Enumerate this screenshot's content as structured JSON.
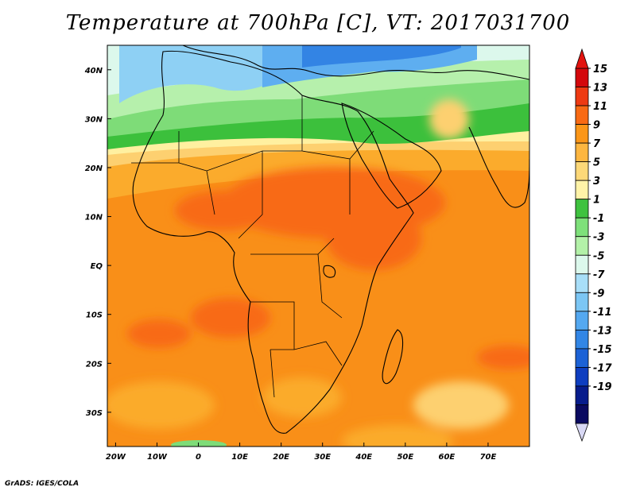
{
  "title": "Temperature at 700hPa [C], VT: 2017031700",
  "credit": "GrADS: IGES/COLA",
  "map": {
    "lon_range": [
      -22,
      80
    ],
    "lat_range": [
      -37,
      45
    ],
    "lon_ticks": [
      {
        "value": -20,
        "label": "20W"
      },
      {
        "value": -10,
        "label": "10W"
      },
      {
        "value": 0,
        "label": "0"
      },
      {
        "value": 10,
        "label": "10E"
      },
      {
        "value": 20,
        "label": "20E"
      },
      {
        "value": 30,
        "label": "30E"
      },
      {
        "value": 40,
        "label": "40E"
      },
      {
        "value": 50,
        "label": "50E"
      },
      {
        "value": 60,
        "label": "60E"
      },
      {
        "value": 70,
        "label": "70E"
      }
    ],
    "lat_ticks": [
      {
        "value": 40,
        "label": "40N"
      },
      {
        "value": 30,
        "label": "30N"
      },
      {
        "value": 20,
        "label": "20N"
      },
      {
        "value": 10,
        "label": "10N"
      },
      {
        "value": 0,
        "label": "EQ"
      },
      {
        "value": -10,
        "label": "10S"
      },
      {
        "value": -20,
        "label": "20S"
      },
      {
        "value": -30,
        "label": "30S"
      }
    ]
  },
  "colorbar": {
    "labels": [
      "15",
      "13",
      "11",
      "9",
      "7",
      "5",
      "3",
      "1",
      "-1",
      "-3",
      "-5",
      "-7",
      "-9",
      "-11",
      "-13",
      "-15",
      "-17",
      "-19"
    ],
    "colors": [
      "#d4080c",
      "#ee3a12",
      "#f86a14",
      "#fb9618",
      "#fdb640",
      "#fdd878",
      "#fff3a8",
      "#3fc23f",
      "#7ee07a",
      "#b3f1a8",
      "#dcf8ec",
      "#a8def8",
      "#7cc6f4",
      "#54a8f0",
      "#3286e6",
      "#1c62d6",
      "#0e3ec0",
      "#071c8c",
      "#0a0a60"
    ],
    "over_color": "#e2130f",
    "under_color": "#d8d8f4"
  }
}
